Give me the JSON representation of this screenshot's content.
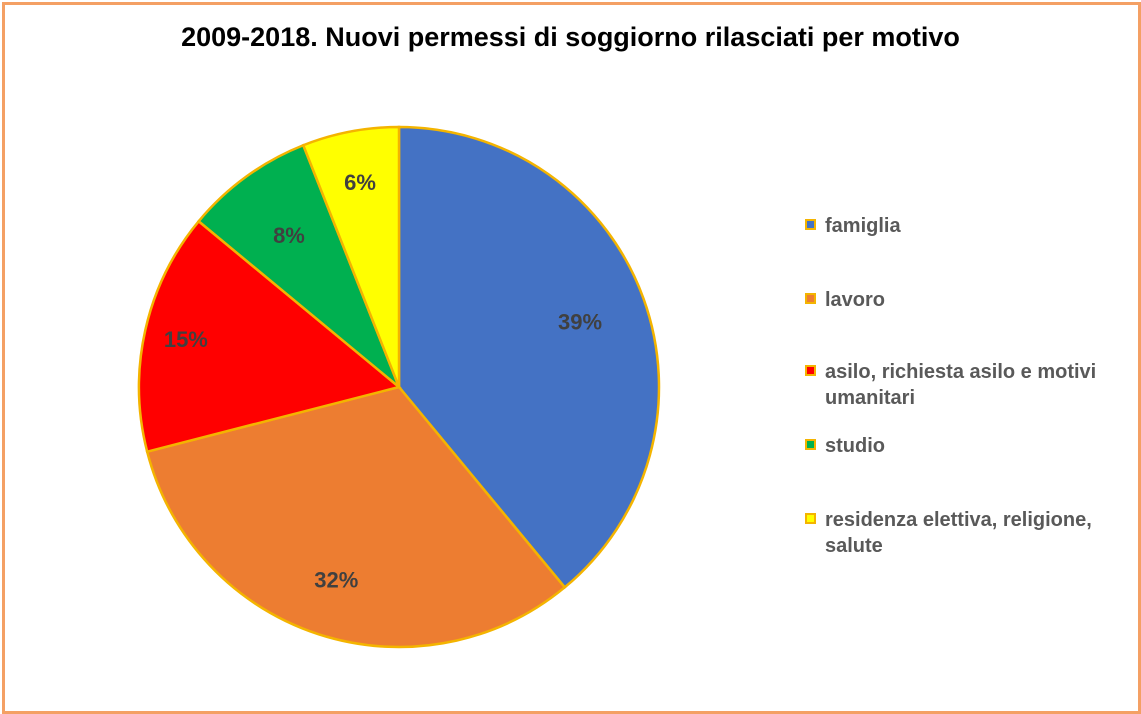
{
  "chart_data": {
    "type": "pie",
    "title": "2009-2018. Nuovi permessi di soggiorno rilasciati per motivo",
    "categories": [
      "famiglia",
      "lavoro",
      "asilo, richiesta asilo e motivi umanitari",
      "studio",
      "residenza elettiva, religione, salute"
    ],
    "values": [
      39,
      32,
      15,
      8,
      6
    ],
    "labels": [
      "39%",
      "32%",
      "15%",
      "8%",
      "6%"
    ],
    "colors": [
      "#4472C4",
      "#ED7D31",
      "#FF0000",
      "#00B050",
      "#FFFF00"
    ],
    "slice_border_color": "#F4B400",
    "legend_position": "right"
  }
}
